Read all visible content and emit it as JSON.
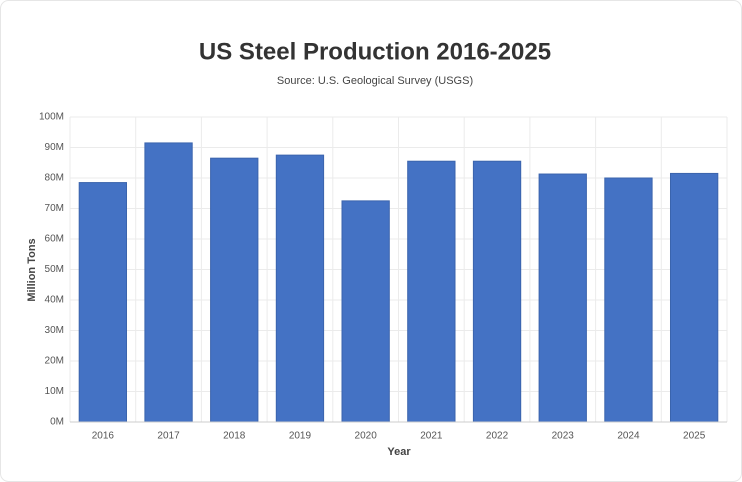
{
  "chart_data": {
    "type": "bar",
    "title": "US Steel Production 2016-2025",
    "subtitle": "Source: U.S. Geological Survey (USGS)",
    "x_label": "Year",
    "y_label": "Million Tons",
    "categories": [
      "2016",
      "2017",
      "2018",
      "2019",
      "2020",
      "2021",
      "2022",
      "2023",
      "2024",
      "2025"
    ],
    "values": [
      78.5,
      91.5,
      86.5,
      87.5,
      72.5,
      85.5,
      85.5,
      81.3,
      80,
      81.5
    ],
    "color": "#4472c4",
    "ylim": [
      0,
      100
    ],
    "yticks": [
      {
        "value": 0,
        "label": "0M"
      },
      {
        "value": 10,
        "label": "10M"
      },
      {
        "value": 20,
        "label": "20M"
      },
      {
        "value": 30,
        "label": "30M"
      },
      {
        "value": 40,
        "label": "40M"
      },
      {
        "value": 50,
        "label": "50M"
      },
      {
        "value": 60,
        "label": "60M"
      },
      {
        "value": 70,
        "label": "70M"
      },
      {
        "value": 80,
        "label": "80M"
      },
      {
        "value": 90,
        "label": "90M"
      },
      {
        "value": 100,
        "label": "100M"
      }
    ],
    "grid": true
  }
}
